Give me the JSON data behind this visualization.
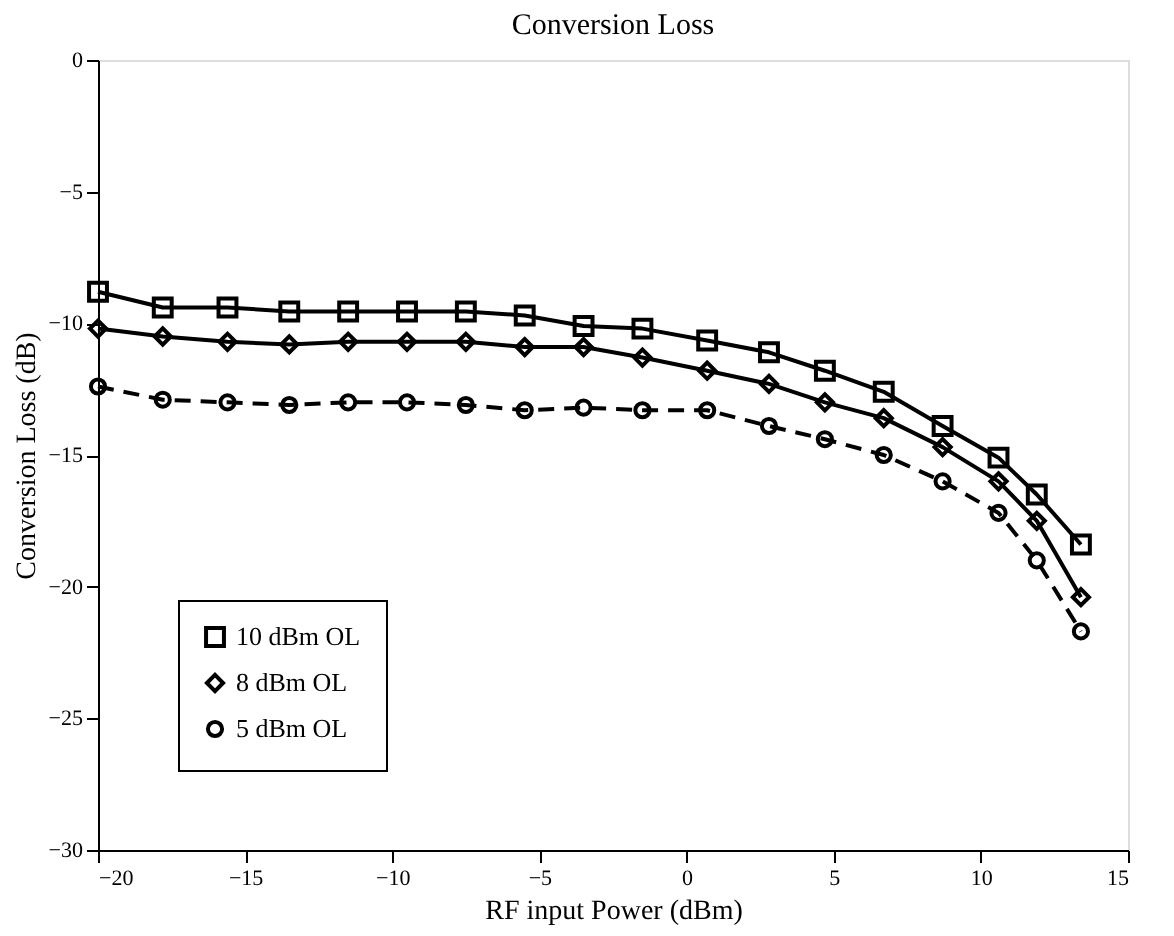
{
  "chart_data": {
    "type": "line",
    "title": "Conversion Loss",
    "xlabel": "RF input Power (dBm)",
    "ylabel": "Conversion Loss (dB)",
    "x": [
      -20,
      -17.8,
      -15.6,
      -13.5,
      -11.5,
      -9.5,
      -7.5,
      -5.5,
      -3.5,
      -1.5,
      0.7,
      2.8,
      4.7,
      6.7,
      8.7,
      10.6,
      11.9,
      13.4
    ],
    "series": [
      {
        "name": "10 dBm OL",
        "color": "#000000",
        "marker": "square",
        "line_style": "solid",
        "values": [
          -8.8,
          -9.4,
          -9.4,
          -9.55,
          -9.55,
          -9.55,
          -9.55,
          -9.7,
          -10.1,
          -10.2,
          -10.65,
          -11.1,
          -11.8,
          -12.6,
          -13.9,
          -15.1,
          -16.5,
          -18.4
        ]
      },
      {
        "name": "8 dBm OL",
        "color": "#000000",
        "marker": "diamond",
        "line_style": "solid",
        "values": [
          -10.2,
          -10.5,
          -10.7,
          -10.8,
          -10.7,
          -10.7,
          -10.7,
          -10.9,
          -10.9,
          -11.3,
          -11.8,
          -12.3,
          -13.0,
          -13.6,
          -14.7,
          -16.0,
          -17.5,
          -20.4
        ]
      },
      {
        "name": "5 dBm OL",
        "color": "#000000",
        "marker": "circle",
        "line_style": "dashed",
        "values": [
          -12.4,
          -12.9,
          -13.0,
          -13.1,
          -13.0,
          -13.0,
          -13.1,
          -13.3,
          -13.2,
          -13.3,
          -13.3,
          -13.9,
          -14.4,
          -15.0,
          -16.0,
          -17.2,
          -19.0,
          -21.7
        ]
      }
    ],
    "xlim": [
      -20,
      15
    ],
    "xticks": [
      -20,
      -15,
      -10,
      -5,
      0,
      5,
      10,
      15
    ],
    "ylim": [
      -30,
      0
    ],
    "yticks": [
      -30,
      -25,
      -20,
      -15,
      -10,
      -5,
      0
    ],
    "grid": false,
    "legend": "bottom left"
  }
}
